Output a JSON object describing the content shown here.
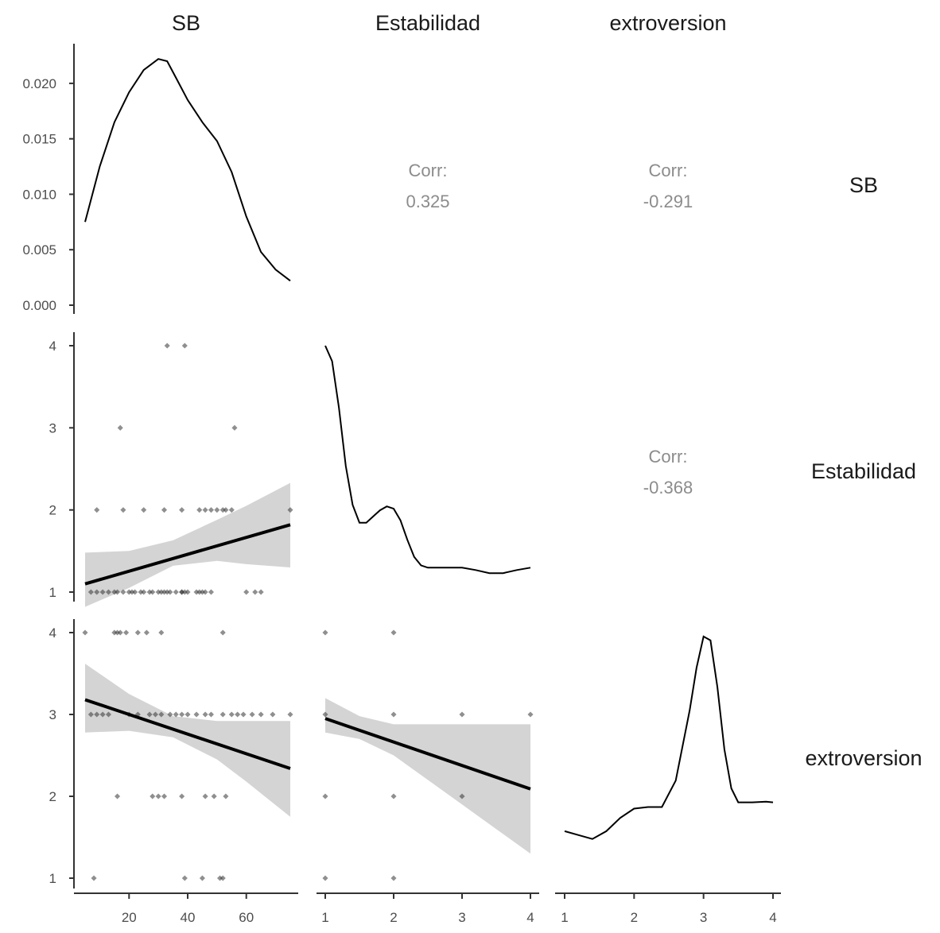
{
  "chart_data": {
    "type": "scatter-matrix",
    "variables": [
      "SB",
      "Estabilidad",
      "extroversion"
    ],
    "strip_labels": {
      "top": [
        "SB",
        "Estabilidad",
        "extroversion"
      ],
      "right": [
        "SB",
        "Estabilidad",
        "extroversion"
      ]
    },
    "axes": {
      "SB": {
        "range": [
          5,
          75
        ],
        "ticks": [
          20,
          40,
          60
        ]
      },
      "Estabilidad": {
        "range": [
          1,
          4
        ],
        "ticks": [
          1,
          2,
          3,
          4
        ]
      },
      "extroversion": {
        "range": [
          1,
          4
        ],
        "ticks": [
          1,
          2,
          3,
          4
        ]
      },
      "SB_density": {
        "range": [
          0,
          0.0225
        ],
        "ticks": [
          "0.000",
          "0.005",
          "0.010",
          "0.015",
          "0.020"
        ]
      }
    },
    "correlations": [
      {
        "row": "SB",
        "col": "Estabilidad",
        "label": "Corr:",
        "value": "0.325"
      },
      {
        "row": "SB",
        "col": "extroversion",
        "label": "Corr:",
        "value": "-0.291"
      },
      {
        "row": "Estabilidad",
        "col": "extroversion",
        "label": "Corr:",
        "value": "-0.368"
      }
    ],
    "densities": {
      "SB": {
        "x": [
          5,
          10,
          15,
          20,
          25,
          30,
          33,
          36,
          40,
          45,
          50,
          55,
          60,
          65,
          70,
          75
        ],
        "y": [
          0.0075,
          0.0125,
          0.0165,
          0.0192,
          0.0212,
          0.0222,
          0.022,
          0.0205,
          0.0185,
          0.0165,
          0.0148,
          0.012,
          0.008,
          0.0048,
          0.0032,
          0.0022
        ]
      },
      "Estabilidad": {
        "x": [
          1,
          1.1,
          1.2,
          1.3,
          1.4,
          1.5,
          1.6,
          1.7,
          1.8,
          1.9,
          2.0,
          2.1,
          2.2,
          2.3,
          2.4,
          2.5,
          2.7,
          3.0,
          3.2,
          3.4,
          3.6,
          3.8,
          4.0
        ],
        "y": [
          4.0,
          3.8,
          3.2,
          2.45,
          1.95,
          1.72,
          1.72,
          1.8,
          1.88,
          1.93,
          1.9,
          1.75,
          1.5,
          1.28,
          1.17,
          1.14,
          1.14,
          1.14,
          1.11,
          1.07,
          1.07,
          1.11,
          1.14
        ]
      },
      "extroversion": {
        "x": [
          1,
          1.2,
          1.4,
          1.6,
          1.8,
          2.0,
          2.2,
          2.4,
          2.6,
          2.8,
          2.9,
          3.0,
          3.1,
          3.2,
          3.3,
          3.4,
          3.5,
          3.7,
          3.9,
          4.0
        ],
        "y": [
          1.45,
          1.4,
          1.35,
          1.45,
          1.62,
          1.74,
          1.76,
          1.76,
          2.1,
          3.0,
          3.55,
          3.95,
          3.9,
          3.3,
          2.5,
          2.0,
          1.82,
          1.82,
          1.83,
          1.82
        ]
      }
    },
    "scatter": {
      "Estabilidad_vs_SB": {
        "x": [
          7,
          9,
          11,
          13,
          15,
          16,
          18,
          20,
          21,
          22,
          24,
          25,
          27,
          28,
          30,
          31,
          32,
          33,
          34,
          36,
          38,
          38,
          39,
          40,
          43,
          44,
          45,
          46,
          48,
          60,
          63,
          65,
          9,
          18,
          25,
          32,
          38,
          44,
          46,
          48,
          50,
          52,
          53,
          55,
          75,
          17,
          56,
          33,
          39
        ],
        "y": [
          1,
          1,
          1,
          1,
          1,
          1,
          1,
          1,
          1,
          1,
          1,
          1,
          1,
          1,
          1,
          1,
          1,
          1,
          1,
          1,
          1,
          1,
          1,
          1,
          1,
          1,
          1,
          1,
          1,
          1,
          1,
          1,
          2,
          2,
          2,
          2,
          2,
          2,
          2,
          2,
          2,
          2,
          2,
          2,
          2,
          3,
          3,
          4,
          4
        ],
        "fit": {
          "x": [
            5,
            75
          ],
          "y": [
            1.1,
            1.82
          ]
        },
        "band": {
          "x": [
            5,
            20,
            35,
            50,
            60,
            75
          ],
          "lower": [
            0.82,
            1.05,
            1.32,
            1.38,
            1.34,
            1.3
          ],
          "upper": [
            1.48,
            1.5,
            1.63,
            1.88,
            2.05,
            2.33
          ]
        }
      },
      "extroversion_vs_SB": {
        "x": [
          5,
          15,
          16,
          17,
          19,
          23,
          26,
          31,
          52,
          7,
          9,
          11,
          13,
          20,
          23,
          27,
          29,
          31,
          34,
          36,
          38,
          40,
          43,
          46,
          48,
          52,
          55,
          57,
          59,
          62,
          65,
          69,
          75,
          16,
          28,
          30,
          32,
          38,
          46,
          49,
          53,
          8,
          39,
          45,
          51,
          52
        ],
        "y": [
          4,
          4,
          4,
          4,
          4,
          4,
          4,
          4,
          4,
          3,
          3,
          3,
          3,
          3,
          3,
          3,
          3,
          3,
          3,
          3,
          3,
          3,
          3,
          3,
          3,
          3,
          3,
          3,
          3,
          3,
          3,
          3,
          3,
          2,
          2,
          2,
          2,
          2,
          2,
          2,
          2,
          1,
          1,
          1,
          1,
          1
        ],
        "fit": {
          "x": [
            5,
            75
          ],
          "y": [
            3.18,
            2.34
          ]
        },
        "band": {
          "x": [
            5,
            20,
            35,
            50,
            60,
            75
          ],
          "lower": [
            2.78,
            2.8,
            2.72,
            2.45,
            2.18,
            1.75
          ],
          "upper": [
            3.62,
            3.25,
            2.98,
            2.92,
            2.92,
            2.92
          ]
        }
      },
      "extroversion_vs_Estabilidad": {
        "x": [
          1,
          2,
          1,
          2,
          3,
          4,
          1,
          2,
          3,
          1,
          2
        ],
        "y": [
          4,
          4,
          3,
          3,
          3,
          3,
          2,
          2,
          2,
          1,
          1
        ],
        "fit": {
          "x": [
            1,
            4
          ],
          "y": [
            2.95,
            2.09
          ]
        },
        "band": {
          "x": [
            1,
            1.5,
            2,
            2.5,
            3,
            3.5,
            4
          ],
          "lower": [
            2.78,
            2.7,
            2.5,
            2.2,
            1.9,
            1.6,
            1.3
          ],
          "upper": [
            3.2,
            2.98,
            2.88,
            2.88,
            2.88,
            2.88,
            2.88
          ]
        }
      }
    }
  }
}
